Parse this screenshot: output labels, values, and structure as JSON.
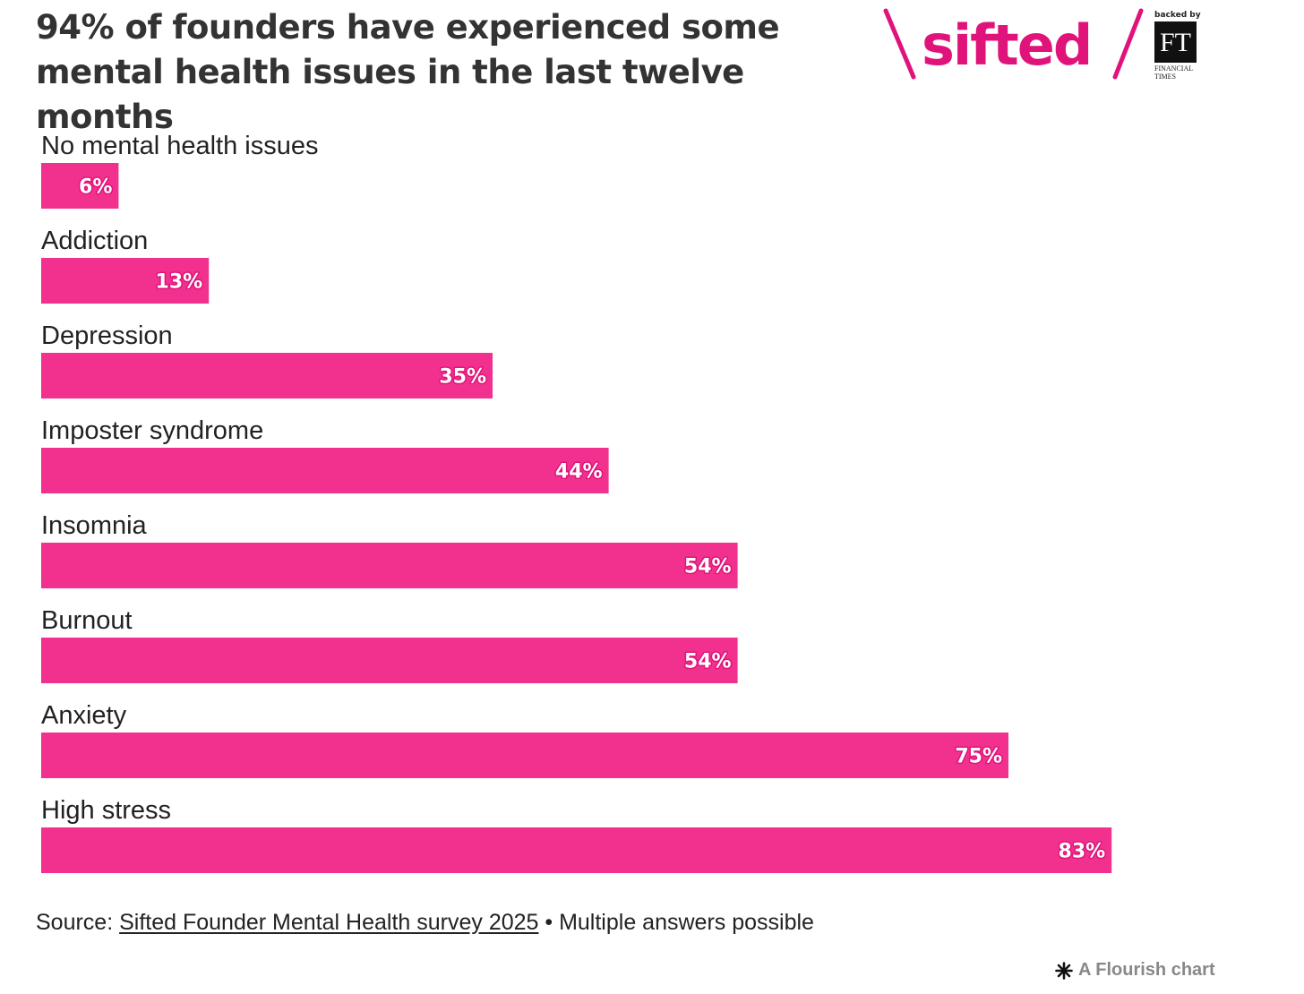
{
  "title": "94% of founders have experienced some mental health issues in the last twelve months",
  "logo": {
    "brand": "sifted",
    "backed_by": "backed by",
    "ft_mark": "FT",
    "ft_line1": "FINANCIAL",
    "ft_line2": "TIMES",
    "brand_color": "#e0137a"
  },
  "chart_data": {
    "type": "bar",
    "orientation": "horizontal",
    "categories": [
      "No mental health issues",
      "Addiction",
      "Depression",
      "Imposter syndrome",
      "Insomnia",
      "Burnout",
      "Anxiety",
      "High stress"
    ],
    "values": [
      6,
      13,
      35,
      44,
      54,
      54,
      75,
      83
    ],
    "value_labels": [
      "6%",
      "13%",
      "35%",
      "44%",
      "54%",
      "54%",
      "75%",
      "83%"
    ],
    "unit": "%",
    "xlim": [
      0,
      100
    ],
    "grid": false,
    "legend": "none",
    "bar_color": "#f2318e"
  },
  "source": {
    "prefix": "Source: ",
    "link_text": "Sifted Founder Mental Health survey 2025",
    "suffix": " • Multiple answers possible"
  },
  "credit": "A Flourish chart"
}
